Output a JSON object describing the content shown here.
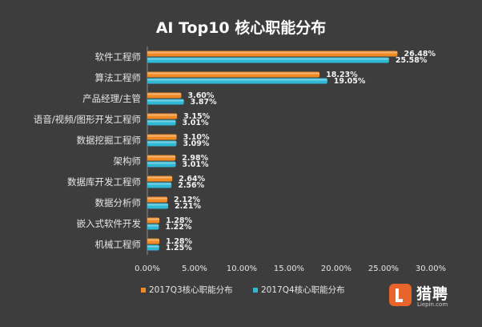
{
  "chart_data": {
    "type": "bar",
    "orientation": "horizontal",
    "title": "AI Top10 核心职能分布",
    "categories": [
      "软件工程师",
      "算法工程师",
      "产品经理/主管",
      "语音/视频/图形开发工程师",
      "数据挖掘工程师",
      "架构师",
      "数据库开发工程师",
      "数据分析师",
      "嵌入式软件开发",
      "机械工程师"
    ],
    "series": [
      {
        "name": "2017Q3核心职能分布",
        "color": "#f08a24",
        "values": [
          26.48,
          18.23,
          3.6,
          3.15,
          3.1,
          2.98,
          2.64,
          2.12,
          1.28,
          1.28
        ],
        "labels": [
          "26.48%",
          "18.23%",
          "3.60%",
          "3.15%",
          "3.10%",
          "2.98%",
          "2.64%",
          "2.12%",
          "1.28%",
          "1.28%"
        ]
      },
      {
        "name": "2017Q4核心职能分布",
        "color": "#2fb8d4",
        "values": [
          25.58,
          19.05,
          3.87,
          3.01,
          3.09,
          3.01,
          2.56,
          2.21,
          1.22,
          1.25
        ],
        "labels": [
          "25.58%",
          "19.05%",
          "3.87%",
          "3.01%",
          "3.09%",
          "3.01%",
          "2.56%",
          "2.21%",
          "1.22%",
          "1.25%"
        ]
      }
    ],
    "xlim": [
      0,
      30
    ],
    "xticks": [
      "0.00%",
      "5.00%",
      "10.00%",
      "15.00%",
      "20.00%",
      "25.00%",
      "30.00%"
    ],
    "grid": false,
    "legend_position": "bottom"
  },
  "logo": {
    "name": "猎聘",
    "sub": "Liepin.com",
    "icon": "liepin-logo-icon"
  }
}
